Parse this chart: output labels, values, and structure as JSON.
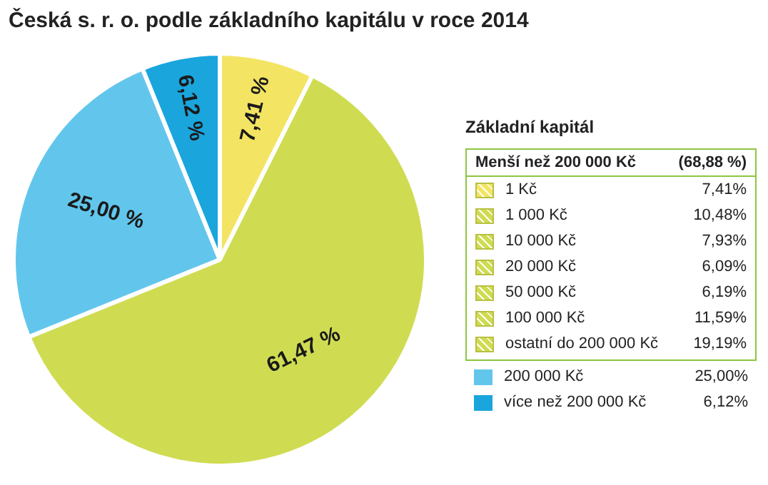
{
  "chart_data": {
    "type": "pie",
    "title": "Česká s. r. o. podle základního kapitálu v roce 2014",
    "legend_title": "Základní kapitál",
    "categories": [
      "1 Kč",
      null,
      "200 000 Kč",
      "více než 200 000 Kč"
    ],
    "values": [
      7.41,
      61.47,
      25.0,
      6.12
    ],
    "colors": [
      "#f3e463",
      "#cfdc52",
      "#62c6ec",
      "#1aa5dd"
    ],
    "value_labels": [
      "7,41 %",
      "61,47 %",
      "25,00 %",
      "6,12 %"
    ],
    "legend": "right",
    "annotations": [
      "Menší než 200 000 Kč",
      "(68,88 %)",
      "7,41%",
      "1 000 Kč",
      "10,48%",
      "10 000 Kč",
      "7,93%",
      "20 000 Kč",
      "6,09%",
      "50 000 Kč",
      "6,19%",
      "100 000 Kč",
      "11,59%",
      "ostatní do 200 000 Kč",
      "19,19%",
      "25,00%",
      "6,12%"
    ]
  }
}
